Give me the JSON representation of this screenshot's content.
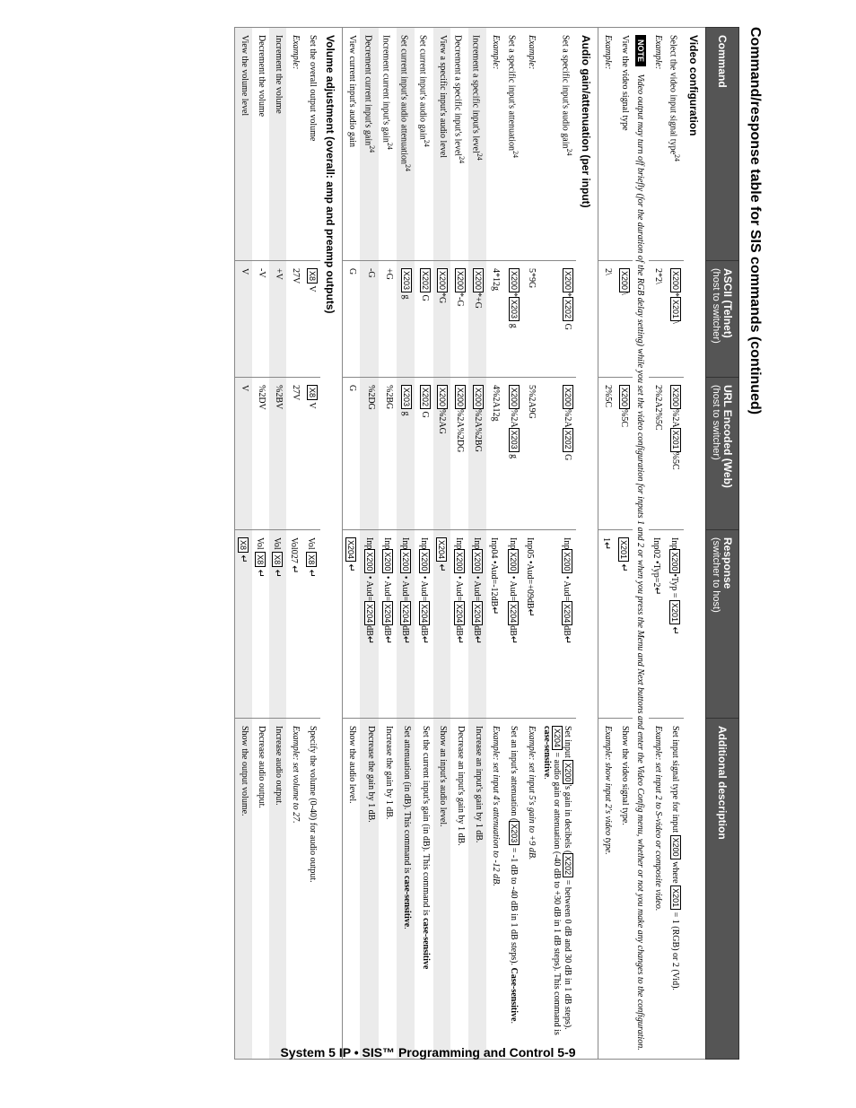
{
  "page_title": "Command/response table for SIS commands (continued)",
  "headers": {
    "c1": "Command",
    "c2": "ASCII (Telnet)",
    "c2_sub": "(host to switcher)",
    "c3": "URL Encoded (Web)",
    "c3_sub": "(host to switcher)",
    "c4": "Response",
    "c4_sub": "(switcher to host)",
    "c5": "Additional description"
  },
  "sections": {
    "video": "Video configuration",
    "audio": "Audio gain/attenuation (per input)",
    "volume": "Volume adjustment (overall: amp and preamp outputs)"
  },
  "rows": {
    "v1": {
      "cmd": "Select the video input signal type",
      "sup": "24",
      "ascii_parts": [
        "",
        "*",
        "",
        "\\"
      ],
      "url_parts": [
        "",
        "%2A",
        "",
        "%5C"
      ],
      "resp_parts": [
        "Inp",
        "•Typ = ",
        ""
      ],
      "desc_parts": [
        "Set input signal type for input ",
        " where ",
        " = 1 (RGB) or 2 (Vid)."
      ]
    },
    "v2": {
      "cmd": "Example:",
      "ascii": "2*2\\",
      "url": "2%2A2%5C",
      "resp": "Inp02 •Typ=2",
      "desc": "Example: set input 2 to S-video or composite video."
    },
    "vnote": {
      "label": "NOTE",
      "text": "Video output may turn off briefly (for the duration of the RGB delay setting) while you set the video configuration for inputs 1 and 2 or when you press the Menu and Next buttons and enter the Video Config menu, whether or not you make any changes to the configuration."
    },
    "v3": {
      "cmd": "View the video signal type",
      "ascii_parts": [
        "",
        "\\"
      ],
      "url_parts": [
        "",
        "%5C"
      ],
      "resp_box": "X201",
      "desc": "Show the video signal type."
    },
    "v4": {
      "cmd": "Example:",
      "ascii": "2\\",
      "url": "2%5C",
      "resp": "1",
      "desc": "Example: show input 2's video type."
    },
    "a1": {
      "cmd": "Set a specific input's audio gain",
      "sup": "24",
      "ascii_parts": [
        "",
        "*",
        " G"
      ],
      "url_parts": [
        "",
        "%2A",
        " G"
      ],
      "resp_parts": [
        "Inp",
        " • Aud=",
        "dB"
      ],
      "desc_parts": [
        "Set input ",
        "'s gain in decibels (",
        " = between 0 dB and 30 dB in 1 dB steps). ",
        " = audio gain or attenuation (-40 dB to +30 dB in 1 dB steps). This command is ",
        "case-sensitive",
        "."
      ]
    },
    "a2": {
      "cmd": "Example:",
      "ascii": "5*9G",
      "url": "5%2A9G",
      "resp": "Inp05 •Aud=+09dB",
      "desc": "Example: set input 5's gain to +9 dB."
    },
    "a3": {
      "cmd": "Set a specific input's attenuation",
      "sup": "24",
      "ascii_parts": [
        "",
        "*",
        " g"
      ],
      "url_parts": [
        "",
        "%2A",
        " g"
      ],
      "resp_parts": [
        "Inp",
        " • Aud=",
        "dB"
      ],
      "desc_parts": [
        "Set an input's attenuation (",
        " = -1 dB to -40 dB in 1 dB steps). ",
        "Case-sensitive",
        "."
      ]
    },
    "a4": {
      "cmd": "Example:",
      "ascii": "4*12g",
      "url": "4%2A12g",
      "resp": "Inp04 •Aud=-12dB",
      "desc": "Example: set input 4's attenuation to -12 dB."
    },
    "a5": {
      "cmd": "Increment a specific input's level",
      "sup": "24",
      "ascii_parts": [
        "",
        "*+G"
      ],
      "url_parts": [
        "",
        "%2A%2BG"
      ],
      "resp_parts": [
        "Inp",
        " • Aud=",
        "dB"
      ],
      "desc": "Increase an input's gain by 1 dB."
    },
    "a6": {
      "cmd": "Decrement a specific input's level",
      "sup": "24",
      "ascii_parts": [
        "",
        "*-G"
      ],
      "url_parts": [
        "",
        "%2A%2DG"
      ],
      "resp_parts": [
        "Inp",
        " • Aud=",
        "dB"
      ],
      "desc": "Decrease an input's gain by 1 dB."
    },
    "a7": {
      "cmd": "View a specific input's audio level",
      "ascii_parts": [
        "",
        "*G"
      ],
      "url_parts": [
        "",
        "%2AG"
      ],
      "resp_box": "X204",
      "desc": "Show an input's audio level."
    },
    "a8": {
      "cmd": "Set current input's audio gain",
      "sup": "24",
      "ascii_parts": [
        "",
        " G"
      ],
      "url_parts": [
        "",
        " G"
      ],
      "resp_parts": [
        "Inp",
        " • Aud=",
        "dB"
      ],
      "desc_parts": [
        "Set the current input's gain (in dB). This command is ",
        "case-sensitive"
      ]
    },
    "a9": {
      "cmd": "Set current input's audio attenuation",
      "sup": "24",
      "ascii_parts": [
        "",
        " g"
      ],
      "url_parts": [
        "",
        " g"
      ],
      "resp_parts": [
        "Inp",
        " • Aud=",
        "dB"
      ],
      "desc_parts": [
        "Set attenuation (in dB). This command is ",
        "case-sensitive",
        "."
      ]
    },
    "a10": {
      "cmd": "Increment current input's gain",
      "sup": "24",
      "ascii": "+G",
      "url": "%2BG",
      "resp_parts": [
        "Inp",
        " • Aud=",
        "dB"
      ],
      "desc": "Increase the gain by 1 dB."
    },
    "a11": {
      "cmd": "Decrement current input's gain",
      "sup": "24",
      "ascii": "-G",
      "url": "%2DG",
      "resp_parts": [
        "Inp",
        " • Aud=",
        "dB"
      ],
      "desc": "Decrease the gain by 1 dB."
    },
    "a12": {
      "cmd": "View current input's audio gain",
      "ascii": "G",
      "url": "G",
      "resp_box": "X204",
      "desc": "Show the audio level."
    },
    "vo1": {
      "cmd": "Set the overall output volume",
      "ascii_parts": [
        "",
        " V"
      ],
      "url_parts": [
        "",
        " V"
      ],
      "resp_parts": [
        "Vol ",
        ""
      ],
      "desc": "Specify the volume (0-40) for audio output."
    },
    "vo2": {
      "cmd": "Example:",
      "ascii": "27V",
      "url": "27V",
      "resp": "Vol027",
      "desc": "Example: set volume to 27."
    },
    "vo3": {
      "cmd": "Increment the volume",
      "ascii": "+V",
      "url": "%2BV",
      "resp_parts": [
        "Vol ",
        ""
      ],
      "desc": "Increase audio output."
    },
    "vo4": {
      "cmd": "Decrement the volume",
      "ascii": "-V",
      "url": "%2DV",
      "resp_parts": [
        "Vol ",
        ""
      ],
      "desc": "Decrease audio output."
    },
    "vo5": {
      "cmd": "View the volume level",
      "ascii": "V",
      "url": "V",
      "resp_box": "X8",
      "desc": "Show the output volume."
    }
  },
  "vars": {
    "X200": "X200",
    "X201": "X201",
    "X202": "X202",
    "X203": "X203",
    "X204": "X204",
    "X8": "X8"
  },
  "footer": "System 5 IP • SIS™ Programming and Control    5-9"
}
